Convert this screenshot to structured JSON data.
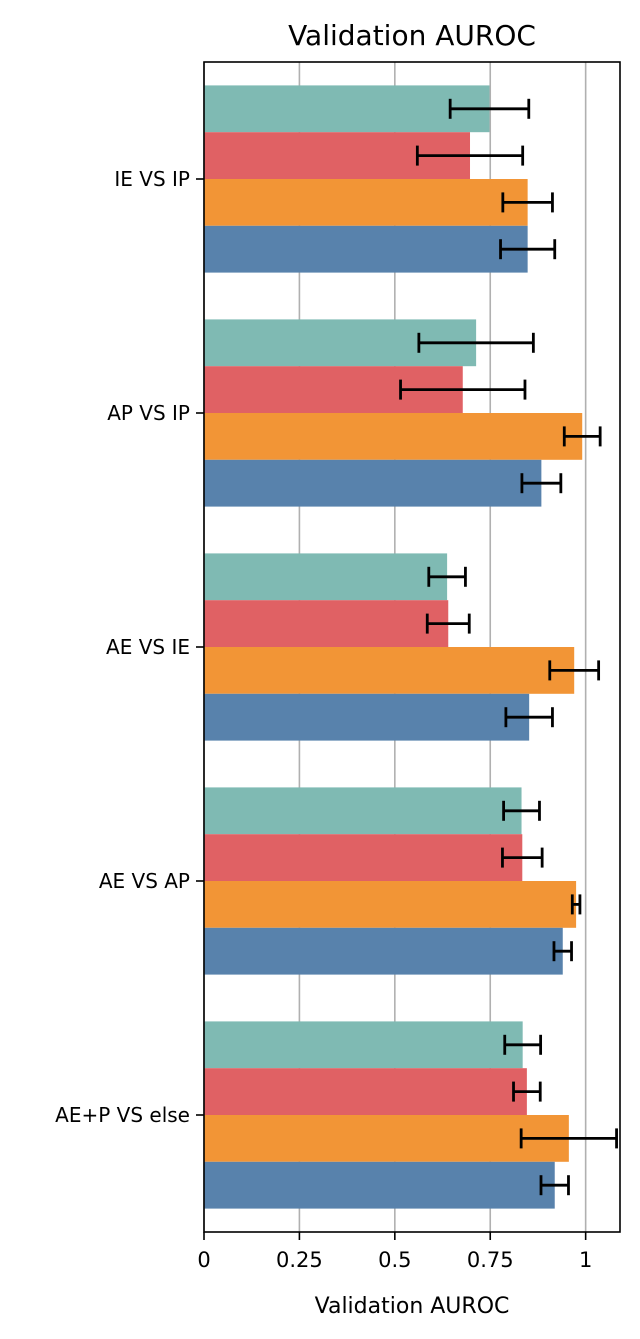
{
  "chart_data": {
    "type": "bar",
    "orientation": "horizontal",
    "title": "Validation AUROC",
    "xlabel": "Validation AUROC",
    "ylabel": "",
    "xlim": [
      0,
      1.09
    ],
    "x_ticks": [
      0,
      0.25,
      0.5,
      0.75,
      1
    ],
    "x_tick_labels": [
      "0",
      "0.25",
      "0.5",
      "0.75",
      "1"
    ],
    "grid": "vertical",
    "legend": "none",
    "categories": [
      "IE VS IP",
      "AP VS IP",
      "AE VS IE",
      "AE VS AP",
      "AE+P VS else"
    ],
    "series": [
      {
        "color": "#7fbab3",
        "values": [
          0.748,
          0.713,
          0.637,
          0.832,
          0.835
        ],
        "errors": [
          0.103,
          0.15,
          0.048,
          0.047,
          0.047
        ]
      },
      {
        "color": "#e06164",
        "values": [
          0.697,
          0.678,
          0.64,
          0.834,
          0.846
        ],
        "errors": [
          0.138,
          0.163,
          0.055,
          0.052,
          0.035
        ]
      },
      {
        "color": "#f29536",
        "values": [
          0.848,
          0.991,
          0.97,
          0.975,
          0.956
        ],
        "errors": [
          0.065,
          0.047,
          0.064,
          0.01,
          0.125
        ]
      },
      {
        "color": "#5882ac",
        "values": [
          0.848,
          0.884,
          0.852,
          0.94,
          0.919
        ],
        "errors": [
          0.071,
          0.051,
          0.061,
          0.023,
          0.036
        ]
      }
    ]
  }
}
